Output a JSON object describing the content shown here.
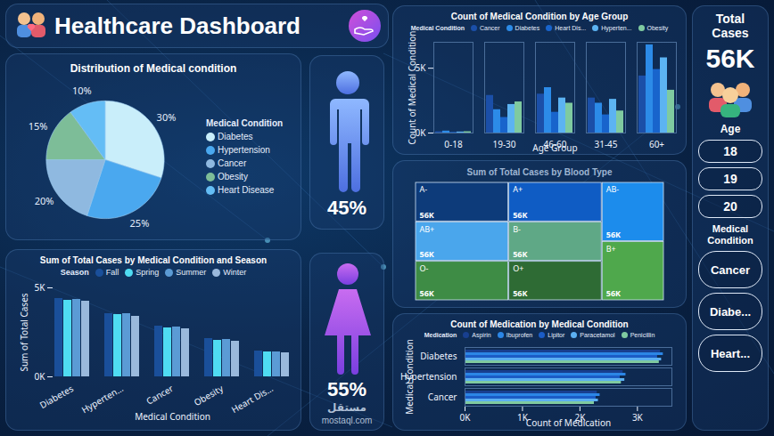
{
  "dashboard_title": "Healthcare Dashboard",
  "total_cases": {
    "title": "Total Cases",
    "value": "56K"
  },
  "gender_shares": [
    "45%",
    "55%"
  ],
  "slicers": [
    {
      "title": "Age",
      "items": [
        "18",
        "19",
        "20"
      ]
    },
    {
      "title": "Medical Condition",
      "items": [
        "Cancer",
        "Diabe...",
        "Heart..."
      ]
    }
  ],
  "watermark": [
    "مستقل",
    "mostaql.com"
  ],
  "chart_data": [
    {
      "type": "pie",
      "title": "Distribution of Medical condition",
      "legend_title": "Medical Condition",
      "legend": "right",
      "categories": [
        "Diabetes",
        "Hypertension",
        "Cancer",
        "Obesity",
        "Heart Disease"
      ],
      "values": [
        30,
        25,
        20,
        15,
        10
      ],
      "value_labels": [
        "30%",
        "25%",
        "20%",
        "15%",
        "10%"
      ],
      "colors": [
        "#c9eefa",
        "#4aa8ef",
        "#8fb9e0",
        "#7dbd98",
        "#64bdf5"
      ],
      "data_labels": true
    },
    {
      "type": "bar",
      "title": "Sum of Total Cases by Medical Condition and Season",
      "legend_title": "Season",
      "legend": "top",
      "categories": [
        "Diabetes",
        "Hyperten...",
        "Cancer",
        "Obesity",
        "Heart Dis..."
      ],
      "series": [
        {
          "name": "Fall",
          "color": "#1a4f9a",
          "values": [
            4400,
            3550,
            2850,
            2150,
            1450
          ]
        },
        {
          "name": "Spring",
          "color": "#4fdcf2",
          "values": [
            4300,
            3500,
            2750,
            2050,
            1400
          ]
        },
        {
          "name": "Summer",
          "color": "#5b9bd5",
          "values": [
            4350,
            3550,
            2800,
            2100,
            1400
          ]
        },
        {
          "name": "Winter",
          "color": "#9ab9dc",
          "values": [
            4250,
            3400,
            2700,
            2000,
            1350
          ]
        }
      ],
      "xlabel": "Medical Condition",
      "ylabel": "Sum of Total Cases",
      "ylim": [
        0,
        5000
      ],
      "yticks": [
        {
          "value": 0,
          "label": "0K"
        },
        {
          "value": 5000,
          "label": "5K"
        }
      ]
    },
    {
      "type": "bar",
      "title": "Count of Medical Condition by Age Group",
      "legend_title": "Medical Condition",
      "legend": "top",
      "categories": [
        "0-18",
        "19-30",
        "46-60",
        "31-45",
        "60+"
      ],
      "series": [
        {
          "name": "Cancer",
          "color": "#1b4fa8",
          "values": [
            100,
            2900,
            3000,
            2700,
            4400
          ]
        },
        {
          "name": "Diabetes",
          "color": "#2c8be8",
          "values": [
            150,
            1800,
            3500,
            2300,
            6800
          ]
        },
        {
          "name": "Heart Dis...",
          "color": "#1864cc",
          "values": [
            50,
            1200,
            1600,
            1400,
            4900
          ]
        },
        {
          "name": "Hyperten...",
          "color": "#5cb3f2",
          "values": [
            80,
            2200,
            2700,
            2600,
            5800
          ]
        },
        {
          "name": "Obesity",
          "color": "#7fcaa0",
          "values": [
            100,
            2400,
            2300,
            1700,
            3300
          ]
        }
      ],
      "xlabel": "Age Group",
      "ylabel": "Count of Medical Condition",
      "ylim": [
        0,
        7000
      ],
      "yticks": [
        {
          "value": 0,
          "label": "0K"
        },
        {
          "value": 5000,
          "label": "5K"
        }
      ]
    },
    {
      "type": "treemap",
      "title": "Sum of Total Cases by Blood Type",
      "categories": [
        "A-",
        "AB+",
        "O-",
        "A+",
        "B-",
        "O+",
        "AB-",
        "B+"
      ],
      "values": [
        56000,
        56000,
        56000,
        56000,
        56000,
        56000,
        56000,
        56000
      ],
      "value_labels": [
        "56K",
        "56K",
        "56K",
        "56K",
        "56K",
        "56K",
        "56K",
        "56K"
      ],
      "colors": [
        "#0d3b7a",
        "#4aa6ec",
        "#3e8c45",
        "#0f5cc4",
        "#5fa886",
        "#2e6b34",
        "#1c8cec",
        "#4fa84c"
      ],
      "data_labels": true
    },
    {
      "type": "bar",
      "orientation": "horizontal",
      "title": "Count of Medication by Medical Condition",
      "legend_title": "Medication",
      "legend": "top",
      "categories": [
        "Diabetes",
        "Hypertension",
        "Cancer"
      ],
      "series": [
        {
          "name": "Aspirin",
          "color": "#183f8f",
          "values": [
            3400,
            2750,
            2300
          ]
        },
        {
          "name": "Ibuprofen",
          "color": "#2b86e6",
          "values": [
            3450,
            2800,
            2350
          ]
        },
        {
          "name": "Lipitor",
          "color": "#1b5cc6",
          "values": [
            3350,
            2700,
            2280
          ]
        },
        {
          "name": "Paracetamol",
          "color": "#5cb0f2",
          "values": [
            3420,
            2780,
            2320
          ]
        },
        {
          "name": "Penicillin",
          "color": "#7fcaa0",
          "values": [
            3380,
            2720,
            2250
          ]
        }
      ],
      "xlabel": "Count of Medication",
      "ylabel": "Medical Condition",
      "xlim": [
        0,
        3600
      ],
      "xticks": [
        {
          "value": 0,
          "label": "0K"
        },
        {
          "value": 1000,
          "label": "1K"
        },
        {
          "value": 2000,
          "label": "2K"
        },
        {
          "value": 3000,
          "label": "3K"
        }
      ]
    }
  ]
}
